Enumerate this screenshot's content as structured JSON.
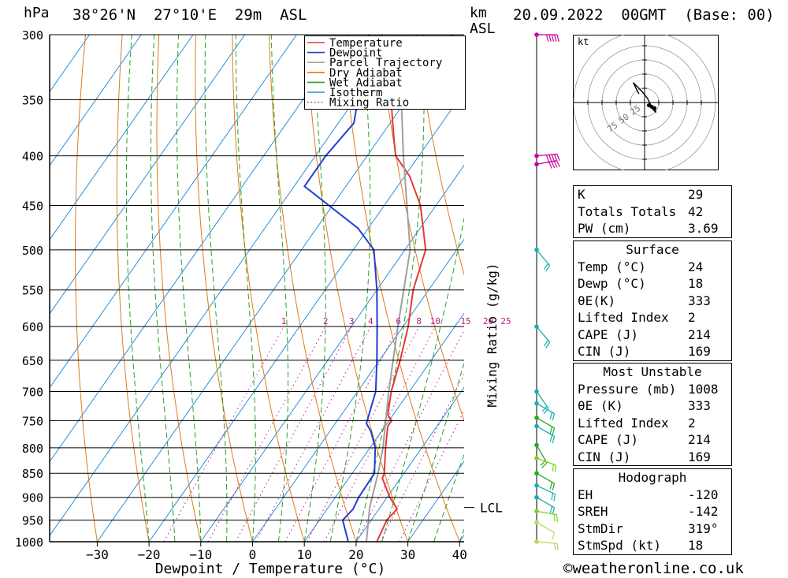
{
  "header": {
    "pressure_unit": "hPa",
    "location": "38°26'N  27°10'E  29m  ASL",
    "km_unit": "km",
    "asl_label": "ASL",
    "datetime": "20.09.2022  00GMT  (Base: 00)"
  },
  "chart_data": {
    "type": "line",
    "subtype": "skew-T log-P sounding",
    "xlabel": "Dewpoint / Temperature (°C)",
    "ylabel": "hPa",
    "right_axis_label": "Mixing Ratio (g/kg)",
    "pressure_ticks": [
      300,
      350,
      400,
      450,
      500,
      550,
      600,
      650,
      700,
      750,
      800,
      850,
      900,
      950,
      1000
    ],
    "x_ticks": [
      -30,
      -20,
      -10,
      0,
      10,
      20,
      30,
      40
    ],
    "mixing_ratio_labels": [
      "1",
      "2",
      "3",
      "4",
      "6",
      "8",
      "10",
      "15",
      "20",
      "25"
    ],
    "lcl_label": "LCL",
    "lcl_pressure": 922,
    "legend": [
      {
        "name": "Temperature",
        "color": "#e53935",
        "style": "solid"
      },
      {
        "name": "Dewpoint",
        "color": "#1e3fd6",
        "style": "solid"
      },
      {
        "name": "Parcel Trajectory",
        "color": "#a0a0a0",
        "style": "solid"
      },
      {
        "name": "Dry Adiabat",
        "color": "#e07b1a",
        "style": "solid"
      },
      {
        "name": "Wet Adiabat",
        "color": "#2aa02a",
        "style": "solid"
      },
      {
        "name": "Isotherm",
        "color": "#2b8fd9",
        "style": "solid"
      },
      {
        "name": "Mixing Ratio",
        "color": "#c0188a",
        "style": "dotted"
      }
    ],
    "series": [
      {
        "name": "Temperature",
        "color": "#e53935",
        "points": [
          [
            1000,
            24
          ],
          [
            950,
            23
          ],
          [
            925,
            23.5
          ],
          [
            900,
            20.5
          ],
          [
            860,
            16.5
          ],
          [
            850,
            16.2
          ],
          [
            800,
            13
          ],
          [
            760,
            10.5
          ],
          [
            750,
            10.5
          ],
          [
            740,
            9
          ],
          [
            700,
            6.5
          ],
          [
            650,
            4
          ],
          [
            600,
            1
          ],
          [
            550,
            -3
          ],
          [
            500,
            -6
          ],
          [
            450,
            -13
          ],
          [
            420,
            -19
          ],
          [
            400,
            -24.5
          ],
          [
            385,
            -27
          ],
          [
            350,
            -33
          ],
          [
            300,
            -43.5
          ]
        ]
      },
      {
        "name": "Dewpoint",
        "color": "#1e3fd6",
        "points": [
          [
            1000,
            18.5
          ],
          [
            950,
            14.5
          ],
          [
            925,
            15
          ],
          [
            900,
            14.5
          ],
          [
            850,
            14.3
          ],
          [
            800,
            11
          ],
          [
            770,
            8
          ],
          [
            755,
            6
          ],
          [
            700,
            3.5
          ],
          [
            650,
            -0.5
          ],
          [
            600,
            -5
          ],
          [
            550,
            -10
          ],
          [
            500,
            -16
          ],
          [
            475,
            -22
          ],
          [
            430,
            -38
          ],
          [
            400,
            -38
          ],
          [
            370,
            -37
          ],
          [
            300,
            -46
          ]
        ]
      },
      {
        "name": "Parcel Trajectory",
        "color": "#a0a0a0",
        "points": [
          [
            1000,
            22
          ],
          [
            922,
            18
          ],
          [
            850,
            15
          ],
          [
            800,
            12.5
          ],
          [
            700,
            6
          ],
          [
            600,
            -1
          ],
          [
            500,
            -9
          ],
          [
            400,
            -23
          ],
          [
            350,
            -31
          ],
          [
            300,
            -40
          ]
        ]
      }
    ],
    "wind_profile": [
      {
        "p": 300,
        "dir": 270,
        "spd": 60,
        "c": "#cc0099"
      },
      {
        "p": 400,
        "dir": 265,
        "spd": 45,
        "c": "#cc0099"
      },
      {
        "p": 408,
        "dir": 260,
        "spd": 35,
        "c": "#cc0099"
      },
      {
        "p": 500,
        "dir": 320,
        "spd": 15,
        "c": "#12b0b0"
      },
      {
        "p": 600,
        "dir": 320,
        "spd": 15,
        "c": "#12b0b0"
      },
      {
        "p": 700,
        "dir": 325,
        "spd": 15,
        "c": "#12b0b0"
      },
      {
        "p": 720,
        "dir": 300,
        "spd": 15,
        "c": "#12b0b0"
      },
      {
        "p": 745,
        "dir": 300,
        "spd": 20,
        "c": "#22aa22"
      },
      {
        "p": 760,
        "dir": 300,
        "spd": 20,
        "c": "#12b0b0"
      },
      {
        "p": 795,
        "dir": 330,
        "spd": 20,
        "c": "#22aa22"
      },
      {
        "p": 820,
        "dir": 290,
        "spd": 20,
        "c": "#7ed321"
      },
      {
        "p": 850,
        "dir": 300,
        "spd": 20,
        "c": "#22aa22"
      },
      {
        "p": 875,
        "dir": 295,
        "spd": 15,
        "c": "#12b0b0"
      },
      {
        "p": 900,
        "dir": 300,
        "spd": 15,
        "c": "#12b0b0"
      },
      {
        "p": 930,
        "dir": 280,
        "spd": 15,
        "c": "#7ed321"
      },
      {
        "p": 955,
        "dir": 300,
        "spd": 10,
        "c": "#bada55"
      },
      {
        "p": 1000,
        "dir": 275,
        "spd": 15,
        "c": "#bada55"
      }
    ]
  },
  "hodograph": {
    "unit": "kt",
    "rings": [
      "25",
      "50",
      "75"
    ],
    "trace": [
      [
        -8,
        12
      ],
      [
        -16,
        28
      ],
      [
        -4,
        16
      ],
      [
        4,
        6
      ],
      [
        8,
        -2
      ],
      [
        10,
        -6
      ],
      [
        12,
        -10
      ],
      [
        16,
        -14
      ],
      [
        14,
        -8
      ],
      [
        6,
        -4
      ]
    ]
  },
  "indices": {
    "general": [
      {
        "label": "K",
        "value": "29"
      },
      {
        "label": "Totals Totals",
        "value": "42"
      },
      {
        "label": "PW (cm)",
        "value": "3.69"
      }
    ],
    "surface_title": "Surface",
    "surface": [
      {
        "label": "Temp (°C)",
        "value": "24"
      },
      {
        "label": "Dewp (°C)",
        "value": "18"
      },
      {
        "label": "θE(K)",
        "value": "333"
      },
      {
        "label": "Lifted Index",
        "value": "2"
      },
      {
        "label": "CAPE (J)",
        "value": "214"
      },
      {
        "label": "CIN (J)",
        "value": "169"
      }
    ],
    "unstable_title": "Most Unstable",
    "unstable": [
      {
        "label": "Pressure (mb)",
        "value": "1008"
      },
      {
        "label": "θE (K)",
        "value": "333"
      },
      {
        "label": "Lifted Index",
        "value": "2"
      },
      {
        "label": "CAPE (J)",
        "value": "214"
      },
      {
        "label": "CIN (J)",
        "value": "169"
      }
    ],
    "hodograph_title": "Hodograph",
    "hodograph": [
      {
        "label": "EH",
        "value": "-120"
      },
      {
        "label": "SREH",
        "value": "-142"
      },
      {
        "label": "StmDir",
        "value": "319°"
      },
      {
        "label": "StmSpd (kt)",
        "value": "18"
      }
    ]
  },
  "footer": {
    "copyright": "©weatheronline.co.uk"
  }
}
